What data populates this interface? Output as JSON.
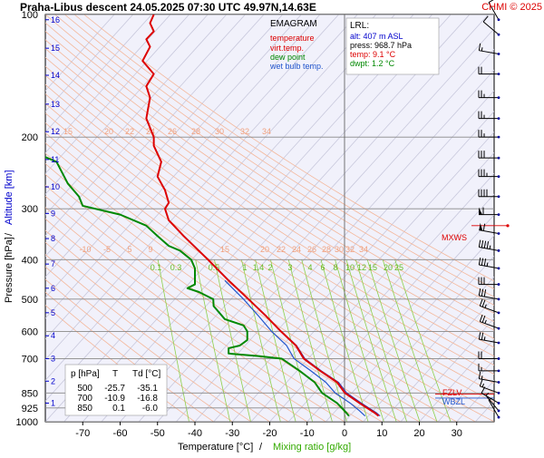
{
  "header": {
    "title": "Praha-Libus   descent   24.05.2025 07:30 UTC  49.97N,14.63E",
    "credit": "CHMI © 2025"
  },
  "legend": {
    "heading": "EMAGRAM",
    "items": [
      {
        "label": "temperature",
        "color": "#dd0000"
      },
      {
        "label": "virt.temp.",
        "color": "#dd0000"
      },
      {
        "label": "dew point",
        "color": "#008800"
      },
      {
        "label": "wet bulb temp.",
        "color": "#2255cc"
      }
    ]
  },
  "lrl": {
    "heading": "LRL:",
    "lines": [
      {
        "text": "alt: 407 m ASL",
        "color": "#0000cc"
      },
      {
        "text": "press: 968.7 hPa",
        "color": "#000000"
      },
      {
        "text": "temp: 9.1 °C",
        "color": "#dd0000"
      },
      {
        "text": "dwpt: 1.2 °C",
        "color": "#008800"
      }
    ]
  },
  "table": {
    "headers": [
      "p [hPa]",
      "T",
      "Td [°C]"
    ],
    "rows": [
      [
        "500",
        "-25.7",
        "-35.1"
      ],
      [
        "700",
        "-10.9",
        "-16.8"
      ],
      [
        "850",
        "0.1",
        "-6.0"
      ]
    ]
  },
  "markers": {
    "mxws": "MXWS",
    "fzlv": "FZLV",
    "wbzl": "WBZL"
  },
  "axes": {
    "xlabel_temp": "Temperature [°C]",
    "xlabel_sep": "/",
    "xlabel_mix": "Mixing ratio [g/kg]",
    "ylabel_press": "Pressure [hPa]",
    "ylabel_sep": "/",
    "ylabel_alt": "Altitude [km]"
  },
  "chart_data": {
    "type": "line",
    "x_axis": {
      "label": "Temperature [°C]",
      "range": [
        -80,
        40
      ],
      "ticks": [
        -70,
        -60,
        -50,
        -40,
        -30,
        -20,
        -10,
        0,
        10,
        20,
        30
      ]
    },
    "y_axis": {
      "label": "Pressure [hPa]",
      "scale": "log",
      "range": [
        1000,
        100
      ],
      "ticks": [
        100,
        200,
        300,
        400,
        500,
        600,
        700,
        850,
        925,
        1000
      ]
    },
    "altitude_ticks_km": [
      "1",
      "2",
      "3",
      "4",
      "5",
      "6",
      "7",
      "8",
      "9",
      "10",
      "11",
      "12",
      "13",
      "14",
      "15",
      "16"
    ],
    "altitude_pressures": [
      900,
      795,
      700,
      615,
      540,
      470,
      410,
      355,
      308,
      265,
      227,
      194,
      166,
      141,
      121,
      103
    ],
    "adiabat_labels": [
      "15",
      "20",
      "22",
      "24",
      "26",
      "28",
      "30",
      "32",
      "34"
    ],
    "adiabat_labels_lower": [
      "-10",
      "-5",
      "5",
      "9",
      "15",
      "20",
      "22",
      "24",
      "26",
      "28",
      "30",
      "32",
      "34"
    ],
    "mixing_ratio_labels": [
      "0.1",
      "0.3",
      "0.5",
      "1",
      "1.4",
      "2",
      "3",
      "4",
      "6",
      "8",
      "10",
      "12",
      "15",
      "20",
      "25"
    ],
    "series": [
      {
        "name": "temperature",
        "color": "#dd0000",
        "points": [
          [
            9.1,
            968
          ],
          [
            8,
            950
          ],
          [
            4,
            900
          ],
          [
            0.1,
            850
          ],
          [
            -2,
            800
          ],
          [
            -6.5,
            750
          ],
          [
            -10.9,
            700
          ],
          [
            -13,
            650
          ],
          [
            -17,
            600
          ],
          [
            -21,
            550
          ],
          [
            -25.7,
            500
          ],
          [
            -31,
            450
          ],
          [
            -36.5,
            400
          ],
          [
            -43,
            350
          ],
          [
            -47,
            320
          ],
          [
            -48,
            300
          ],
          [
            -47,
            290
          ],
          [
            -48,
            270
          ],
          [
            -50,
            250
          ],
          [
            -49,
            230
          ],
          [
            -51,
            210
          ],
          [
            -51,
            200
          ],
          [
            -53,
            180
          ],
          [
            -52,
            160
          ],
          [
            -53,
            150
          ],
          [
            -51,
            140
          ],
          [
            -54,
            130
          ],
          [
            -52,
            120
          ],
          [
            -53,
            115
          ],
          [
            -51,
            110
          ],
          [
            -52,
            105
          ],
          [
            -51,
            100
          ]
        ]
      },
      {
        "name": "virt.temp.",
        "color": "#dd0000",
        "points": [
          [
            9.5,
            968
          ],
          [
            8.5,
            950
          ],
          [
            4.5,
            900
          ],
          [
            0.6,
            850
          ],
          [
            -1.6,
            800
          ],
          [
            -6.2,
            750
          ],
          [
            -10.6,
            700
          ],
          [
            -12.8,
            650
          ],
          [
            -16.9,
            600
          ],
          [
            -20.9,
            550
          ],
          [
            -25.6,
            500
          ],
          [
            -30.9,
            450
          ],
          [
            -36.4,
            400
          ],
          [
            -42.9,
            350
          ],
          [
            -47,
            320
          ],
          [
            -48,
            300
          ],
          [
            -47,
            290
          ],
          [
            -48,
            270
          ],
          [
            -50,
            250
          ],
          [
            -49,
            230
          ],
          [
            -51,
            210
          ],
          [
            -51,
            200
          ],
          [
            -53,
            180
          ],
          [
            -52,
            160
          ],
          [
            -53,
            150
          ],
          [
            -51,
            140
          ],
          [
            -54,
            130
          ],
          [
            -52,
            120
          ],
          [
            -53,
            115
          ],
          [
            -51,
            110
          ],
          [
            -52,
            105
          ],
          [
            -51,
            100
          ]
        ]
      },
      {
        "name": "dew point",
        "color": "#008800",
        "points": [
          [
            1.2,
            968
          ],
          [
            0,
            940
          ],
          [
            -2,
            900
          ],
          [
            -6,
            850
          ],
          [
            -8,
            800
          ],
          [
            -12,
            750
          ],
          [
            -16.8,
            700
          ],
          [
            -23,
            690
          ],
          [
            -31,
            680
          ],
          [
            -31,
            660
          ],
          [
            -28,
            650
          ],
          [
            -26,
            630
          ],
          [
            -26,
            600
          ],
          [
            -27,
            580
          ],
          [
            -32,
            560
          ],
          [
            -35,
            520
          ],
          [
            -35.1,
            500
          ],
          [
            -39,
            480
          ],
          [
            -42,
            470
          ],
          [
            -40,
            460
          ],
          [
            -40,
            450
          ],
          [
            -40,
            420
          ],
          [
            -41,
            400
          ],
          [
            -44,
            380
          ],
          [
            -47,
            370
          ],
          [
            -50,
            350
          ],
          [
            -53,
            330
          ],
          [
            -60,
            310
          ],
          [
            -70,
            295
          ],
          [
            -71,
            280
          ],
          [
            -74,
            260
          ],
          [
            -77,
            230
          ],
          [
            -82,
            220
          ],
          [
            -86,
            200
          ]
        ]
      },
      {
        "name": "wet bulb temp.",
        "color": "#2255cc",
        "points": [
          [
            5.5,
            968
          ],
          [
            4,
            940
          ],
          [
            1.5,
            900
          ],
          [
            -2.5,
            850
          ],
          [
            -5,
            800
          ],
          [
            -9,
            750
          ],
          [
            -13.5,
            700
          ],
          [
            -15.5,
            650
          ],
          [
            -19.5,
            600
          ],
          [
            -23,
            550
          ],
          [
            -27,
            500
          ],
          [
            -32,
            450
          ]
        ]
      }
    ],
    "wind_barbs": [
      {
        "p": 975,
        "dir": 330,
        "kt": 5
      },
      {
        "p": 940,
        "dir": 320,
        "kt": 5
      },
      {
        "p": 900,
        "dir": 300,
        "kt": 10
      },
      {
        "p": 850,
        "dir": 290,
        "kt": 15
      },
      {
        "p": 800,
        "dir": 280,
        "kt": 15
      },
      {
        "p": 750,
        "dir": 270,
        "kt": 15
      },
      {
        "p": 700,
        "dir": 270,
        "kt": 20
      },
      {
        "p": 640,
        "dir": 280,
        "kt": 25
      },
      {
        "p": 590,
        "dir": 290,
        "kt": 25
      },
      {
        "p": 540,
        "dir": 290,
        "kt": 25
      },
      {
        "p": 500,
        "dir": 280,
        "kt": 30
      },
      {
        "p": 460,
        "dir": 270,
        "kt": 30
      },
      {
        "p": 420,
        "dir": 280,
        "kt": 35
      },
      {
        "p": 380,
        "dir": 280,
        "kt": 45
      },
      {
        "p": 345,
        "dir": 280,
        "kt": 60
      },
      {
        "p": 310,
        "dir": 270,
        "kt": 60
      },
      {
        "p": 280,
        "dir": 270,
        "kt": 40
      },
      {
        "p": 250,
        "dir": 270,
        "kt": 35
      },
      {
        "p": 225,
        "dir": 270,
        "kt": 30
      },
      {
        "p": 200,
        "dir": 270,
        "kt": 25
      },
      {
        "p": 180,
        "dir": 270,
        "kt": 25
      },
      {
        "p": 160,
        "dir": 270,
        "kt": 25
      },
      {
        "p": 140,
        "dir": 270,
        "kt": 20
      },
      {
        "p": 125,
        "dir": 280,
        "kt": 15
      },
      {
        "p": 112,
        "dir": 310,
        "kt": 10
      },
      {
        "p": 103,
        "dir": 330,
        "kt": 10
      }
    ],
    "mxws_pressure": 330,
    "fzlv_pressure": 855,
    "wbzl_pressure": 875,
    "grid": true
  }
}
